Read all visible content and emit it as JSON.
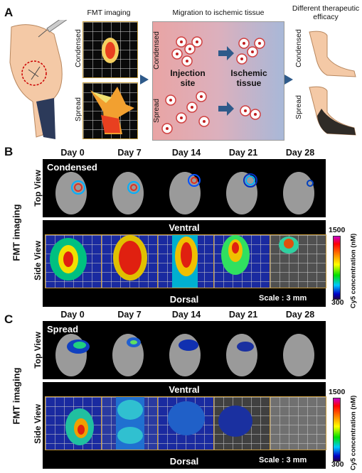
{
  "panel_a": {
    "label": "A",
    "fmt_imaging": "FMT imaging",
    "migration": "Migration to ischemic tissue",
    "efficacy": "Different therapeutic efficacy",
    "condensed": "Condensed",
    "spread": "Spread",
    "injection_site": "Injection site",
    "ischemic_tissue": "Ischemic tissue",
    "colors": {
      "arrow": "#2e5a8a",
      "tissue_left": "#e8a0a0",
      "tissue_right": "#a8b8d8"
    }
  },
  "panel_b": {
    "label": "B",
    "group": "Condensed",
    "days": [
      "Day 0",
      "Day 7",
      "Day 14",
      "Day 21",
      "Day 28"
    ],
    "top_view": "Top View",
    "side_view": "Side View",
    "ventral": "Ventral",
    "dorsal": "Dorsal",
    "fmt_imaging": "FMT imaging",
    "scale": "Scale : 3 mm",
    "cbar_max": "1500",
    "cbar_min": "300",
    "cbar_label": "Cy5 concentration (nM)"
  },
  "panel_c": {
    "label": "C",
    "group": "Spread",
    "days": [
      "Day 0",
      "Day 7",
      "Day 14",
      "Day 21",
      "Day 28"
    ],
    "top_view": "Top View",
    "side_view": "Side View",
    "ventral": "Ventral",
    "dorsal": "Dorsal",
    "fmt_imaging": "FMT imaging",
    "scale": "Scale : 3 mm",
    "cbar_max": "1500",
    "cbar_min": "300",
    "cbar_label": "Cy5 concentration (nM)"
  }
}
